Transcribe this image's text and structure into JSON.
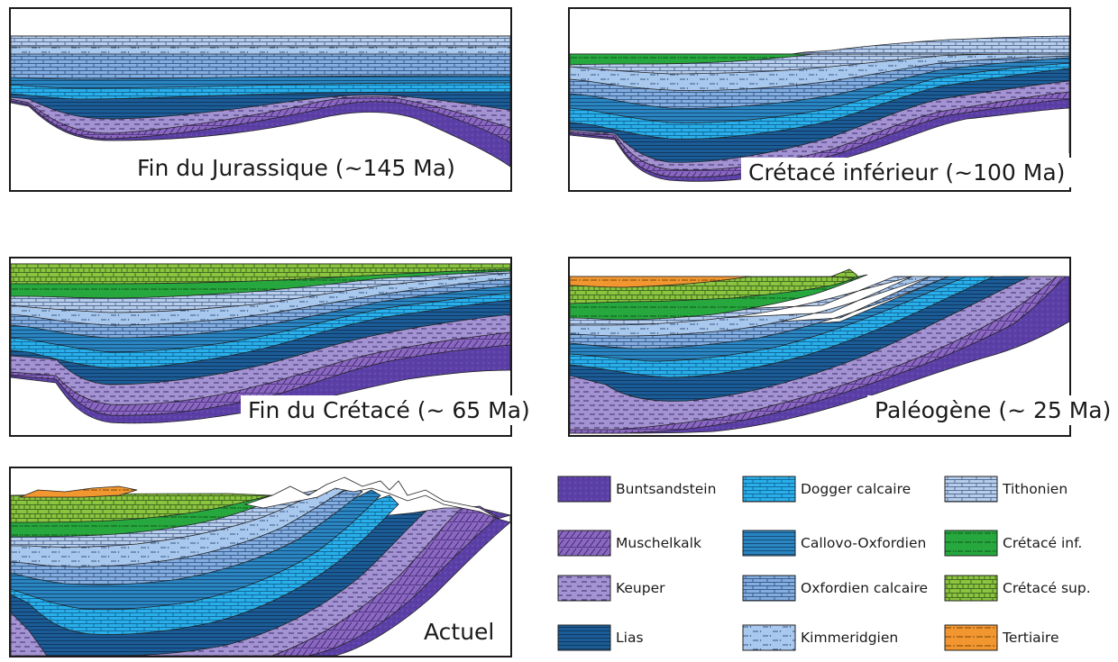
{
  "panels": [
    {
      "caption": "Fin du Jurassique (~145 Ma)"
    },
    {
      "caption": "Crétacé inférieur (~100 Ma)"
    },
    {
      "caption": "Fin du Crétacé (~ 65 Ma)"
    },
    {
      "caption": "Paléogène (~ 25 Ma)"
    },
    {
      "caption": "Actuel"
    }
  ],
  "legend": [
    {
      "label": "Buntsandstein",
      "color": "#5b3fa6",
      "pattern": "buntsandstein-pattern"
    },
    {
      "label": "Muschelkalk",
      "color": "#8b68c0",
      "pattern": "muschelkalk-pattern"
    },
    {
      "label": "Keuper",
      "color": "#a493d2",
      "pattern": "keuper-pattern"
    },
    {
      "label": "Lias",
      "color": "#1c5c96",
      "pattern": "lias-pattern"
    },
    {
      "label": "Dogger calcaire",
      "color": "#29b0ea",
      "pattern": "dogger-pattern"
    },
    {
      "label": "Callovo-Oxfordien",
      "color": "#2a85c1",
      "pattern": "callovo-pattern"
    },
    {
      "label": "Oxfordien calcaire",
      "color": "#84aee0",
      "pattern": "oxfordien-pattern"
    },
    {
      "label": "Kimmeridgien",
      "color": "#a9c8ee",
      "pattern": "kimmeridgien-pattern"
    },
    {
      "label": "Tithonien",
      "color": "#b8cdea",
      "pattern": "tithonien-pattern"
    },
    {
      "label": "Crétacé inf.",
      "color": "#27a83e",
      "pattern": "cretace-inf-pattern"
    },
    {
      "label": "Crétacé sup.",
      "color": "#8bc53f",
      "pattern": "cretace-sup-pattern"
    },
    {
      "label": "Tertiaire",
      "color": "#f2962f",
      "pattern": "tertiaire-pattern"
    }
  ]
}
